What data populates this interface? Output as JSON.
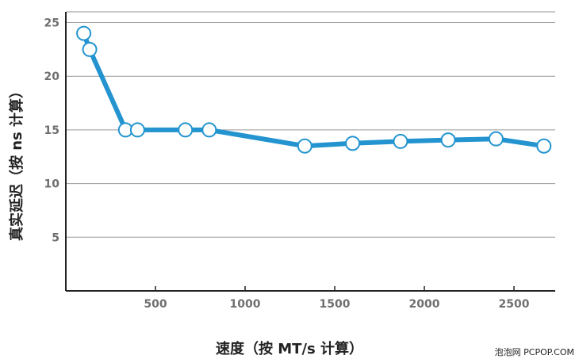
{
  "chart_data": {
    "type": "line",
    "title": "",
    "xlabel": "速度（按 MT/s 计算）",
    "ylabel": "真实延迟（按 ns 计算）",
    "xlim": [
      0,
      2730
    ],
    "ylim": [
      0,
      26
    ],
    "x_ticks": [
      500,
      1000,
      1500,
      2000,
      2500
    ],
    "y_ticks": [
      5,
      10,
      15,
      20,
      25
    ],
    "grid": true,
    "series": [
      {
        "x": [
          100,
          133,
          333,
          400,
          667,
          800,
          1333,
          1600,
          1867,
          2133,
          2400,
          2667
        ],
        "y": [
          24.0,
          22.5,
          15.0,
          15.0,
          15.0,
          15.0,
          13.5,
          13.75,
          13.93,
          14.06,
          14.17,
          13.5
        ]
      }
    ],
    "colors": {
      "line": "#2394cf",
      "marker_fill": "#ffffff",
      "grid": "#999999",
      "axis": "#222222"
    }
  },
  "watermark": "泡泡网 PCPOP.COM"
}
